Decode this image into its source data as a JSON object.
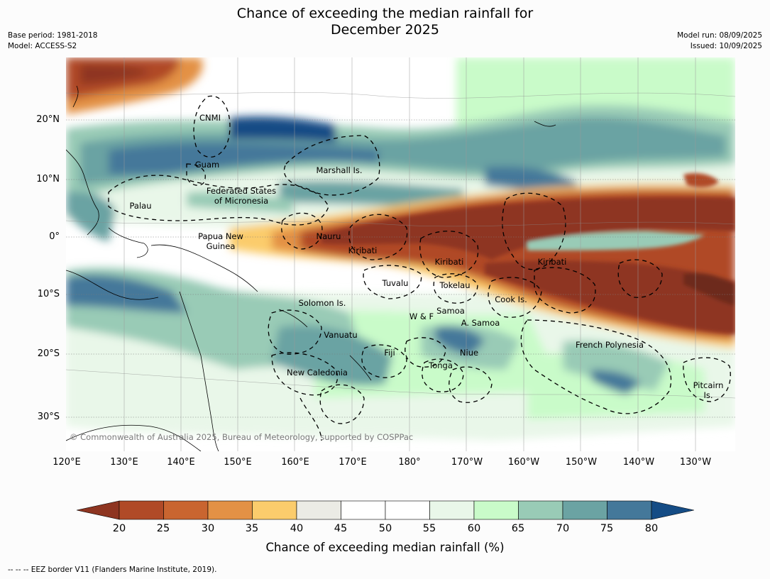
{
  "title_line1": "Chance of exceeding the median rainfall for",
  "title_line2": "December 2025",
  "meta_left": [
    "Base period: 1981-2018",
    "Model: ACCESS-S2"
  ],
  "meta_right": [
    "Model run: 08/09/2025",
    "Issued: 10/09/2025"
  ],
  "lat_labels": [
    "20°N",
    "10°N",
    "0°",
    "10°S",
    "20°S",
    "30°S"
  ],
  "lon_labels": [
    "120°E",
    "130°E",
    "140°E",
    "150°E",
    "160°E",
    "170°E",
    "180°",
    "170°W",
    "160°W",
    "150°W",
    "140°W",
    "130°W"
  ],
  "regions": [
    "CNMI",
    "Guam",
    "Marshall Is.",
    "Federated States\nof Micronesia",
    "Palau",
    "Papua New\nGuinea",
    "Nauru",
    "Kiribati",
    "Kiribati",
    "Kiribati",
    "Tuvalu",
    "Tokelau",
    "Solomon Is.",
    "Samoa",
    "W & F",
    "A. Samoa",
    "Cook Is.",
    "Vanuatu",
    "Fiji",
    "Niue",
    "Tonga",
    "New Caledonia",
    "French Polynesia",
    "Pitcairn\nIs."
  ],
  "copyright": "© Commonwealth of Australia 2025, Bureau of Meteorology, supported by COSPPac",
  "colorbar": {
    "ticks": [
      "20",
      "25",
      "30",
      "35",
      "40",
      "45",
      "50",
      "55",
      "60",
      "65",
      "70",
      "75",
      "80"
    ],
    "colors": [
      "#8e3521",
      "#b04a27",
      "#c96530",
      "#e39145",
      "#fbcc6c",
      "#ebebe5",
      "#ffffff",
      "#ffffff",
      "#e9f7e9",
      "#c9fbc9",
      "#99cbb6",
      "#6ba3a3",
      "#44789a",
      "#154c85"
    ],
    "title": "Chance of exceeding median rainfall (%)"
  },
  "footer": "--  --  -- EEZ border V11 (Flanders Marine Institute, 2019)."
}
